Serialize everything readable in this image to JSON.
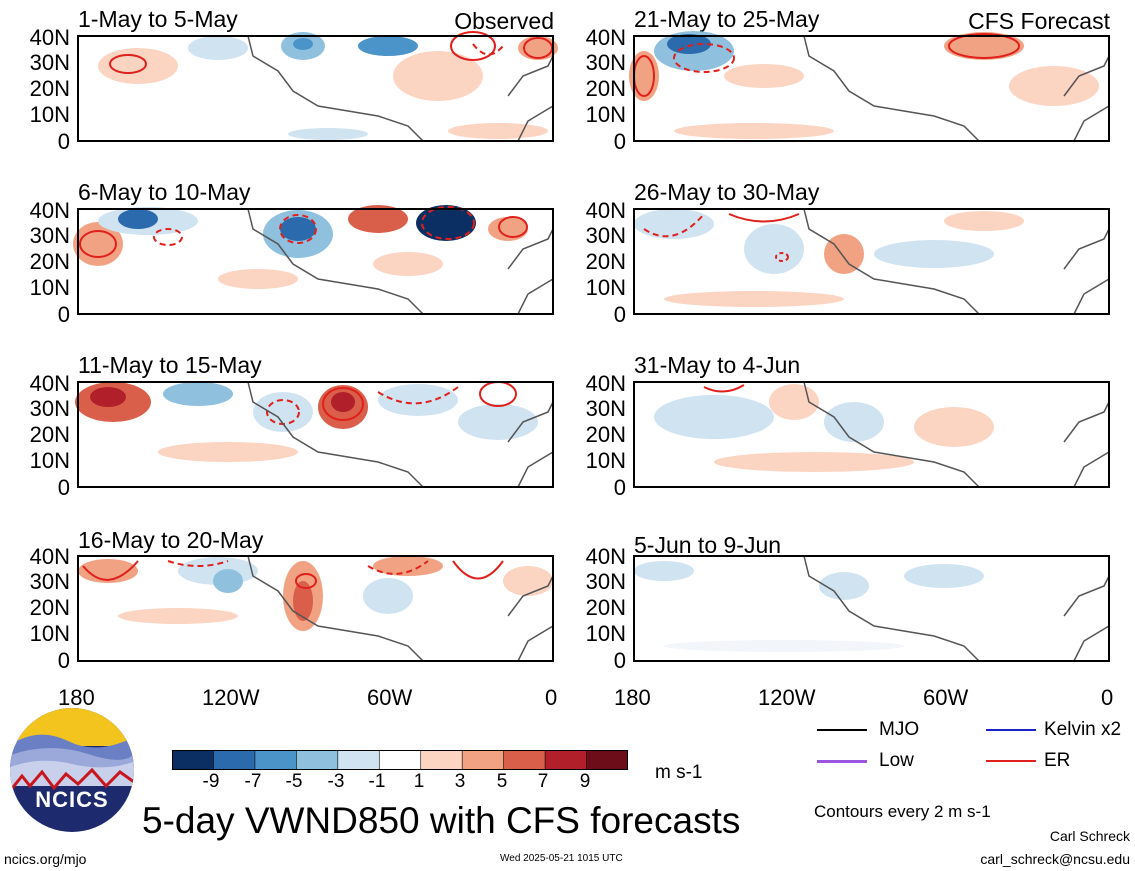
{
  "panel_tags": {
    "observed": "Observed",
    "forecast": "CFS Forecast"
  },
  "panels": [
    {
      "title": "1-May to 5-May",
      "source": "observed"
    },
    {
      "title": "6-May to 10-May",
      "source": "observed"
    },
    {
      "title": "11-May to 15-May",
      "source": "observed"
    },
    {
      "title": "16-May to 20-May",
      "source": "observed"
    },
    {
      "title": "21-May to 25-May",
      "source": "forecast"
    },
    {
      "title": "26-May to 30-May",
      "source": "forecast"
    },
    {
      "title": "31-May to 4-Jun",
      "source": "forecast"
    },
    {
      "title": "5-Jun to 9-Jun",
      "source": "forecast"
    }
  ],
  "axes": {
    "y_ticks": [
      "40N",
      "30N",
      "20N",
      "10N",
      "0"
    ],
    "x_ticks": [
      "180",
      "120W",
      "60W",
      "0"
    ]
  },
  "colorbar": {
    "labels": [
      "-9",
      "-7",
      "-5",
      "-3",
      "-1",
      "1",
      "3",
      "5",
      "7",
      "9"
    ],
    "colors": [
      "#0b2f63",
      "#2a6aad",
      "#4b94c9",
      "#8fc1df",
      "#cfe3f1",
      "#ffffff",
      "#fbd4c2",
      "#f1a282",
      "#d95f4a",
      "#b11f2a",
      "#6d0d1a"
    ],
    "unit": "m s-1"
  },
  "legend": {
    "items": [
      {
        "label": "MJO",
        "color": "#000000"
      },
      {
        "label": "Kelvin x2",
        "color": "#1a22c8"
      },
      {
        "label": "Low",
        "color": "#9b55e0"
      },
      {
        "label": "ER",
        "color": "#e0201c"
      }
    ],
    "contour_note": "Contours every 2 m s-1"
  },
  "title": "5-day VWND850 with CFS forecasts",
  "logo_text": "NCICS",
  "footer": {
    "left": "ncics.org/mjo",
    "center": "Wed 2025-05-21 1015 UTC",
    "author": "Carl Schreck",
    "email": "carl_schreck@ncsu.edu"
  }
}
